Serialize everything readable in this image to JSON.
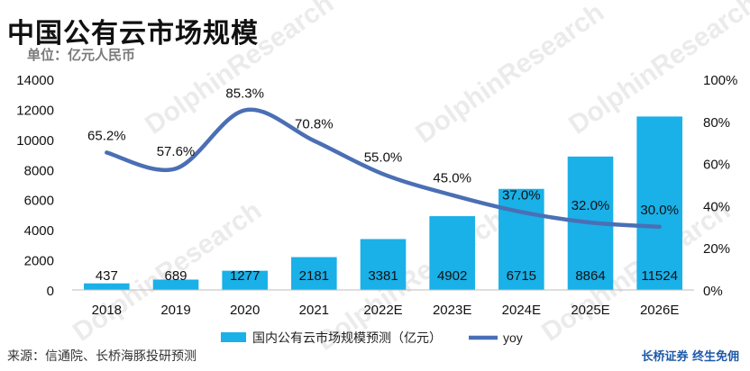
{
  "title": "中国公有云市场规模",
  "unit": "单位：亿元人民币",
  "source": "来源：信通院、长桥海豚投研预测",
  "brand": "长桥证券 终生免佣",
  "colors": {
    "bar": "#1ab0e8",
    "line": "#4a6fb5",
    "axis": "#444444"
  },
  "chart_data": {
    "type": "bar",
    "categories": [
      "2018",
      "2019",
      "2020",
      "2021",
      "2022E",
      "2023E",
      "2024E",
      "2025E",
      "2026E"
    ],
    "series": [
      {
        "name": "国内公有云市场规模预测（亿元）",
        "type": "bar",
        "axis": "left",
        "values": [
          437,
          689,
          1277,
          2181,
          3381,
          4902,
          6715,
          8864,
          11524
        ],
        "labels": [
          "437",
          "689",
          "1277",
          "2181",
          "3381",
          "4902",
          "6715",
          "8864",
          "11524"
        ]
      },
      {
        "name": "yoy",
        "type": "line",
        "axis": "right",
        "values": [
          65.2,
          57.6,
          85.3,
          70.8,
          55.0,
          45.0,
          37.0,
          32.0,
          30.0
        ],
        "labels": [
          "65.2%",
          "57.6%",
          "85.3%",
          "70.8%",
          "55.0%",
          "45.0%",
          "37.0%",
          "32.0%",
          "30.0%"
        ]
      }
    ],
    "y_left": {
      "ylim": [
        0,
        14000
      ],
      "ticks": [
        "0",
        "2000",
        "4000",
        "6000",
        "8000",
        "10000",
        "12000",
        "14000"
      ]
    },
    "y_right": {
      "ylim": [
        0,
        100
      ],
      "ticks": [
        "0%",
        "20%",
        "40%",
        "60%",
        "80%",
        "100%"
      ]
    },
    "grid": false,
    "legend_position": "bottom"
  }
}
